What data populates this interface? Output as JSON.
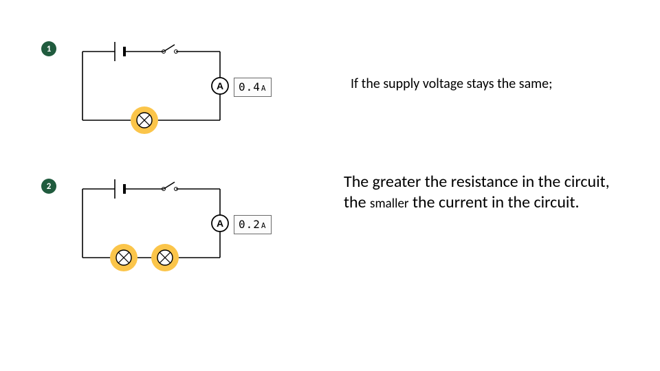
{
  "colors": {
    "badge_bg": "#205b3e",
    "badge_fg": "#ffffff",
    "wire": "#000000",
    "box_border": "#6a6a6a",
    "box_bg": "#fcfcfc",
    "bulb_halo": "#fbc54a",
    "bulb_core_fill": "#ffffff",
    "bulb_core_stroke": "#000000",
    "ammeter_fill": "#ffffff",
    "ammeter_stroke": "#000000",
    "text": "#000000"
  },
  "circuits": [
    {
      "id": 1,
      "label": "1",
      "reading_value": "0.4",
      "reading_unit": "A",
      "bulb_count": 1
    },
    {
      "id": 2,
      "label": "2",
      "reading_value": "0.2",
      "reading_unit": "A",
      "bulb_count": 2
    }
  ],
  "text_line": "If the supply voltage stays the same;",
  "conclusion": {
    "pre": "The greater the resistance in the circuit, the ",
    "word": "smaller",
    "post": " the current in the circuit."
  },
  "diagram_style": {
    "wire_stroke_width": 1.6,
    "ammeter_radius": 12,
    "bulb_halo_radius": 20,
    "bulb_core_radius": 11,
    "switch_gap": 18,
    "circuit_width": 200,
    "circuit_height": 100,
    "reading_box_width": 60,
    "reading_box_height": 28
  }
}
